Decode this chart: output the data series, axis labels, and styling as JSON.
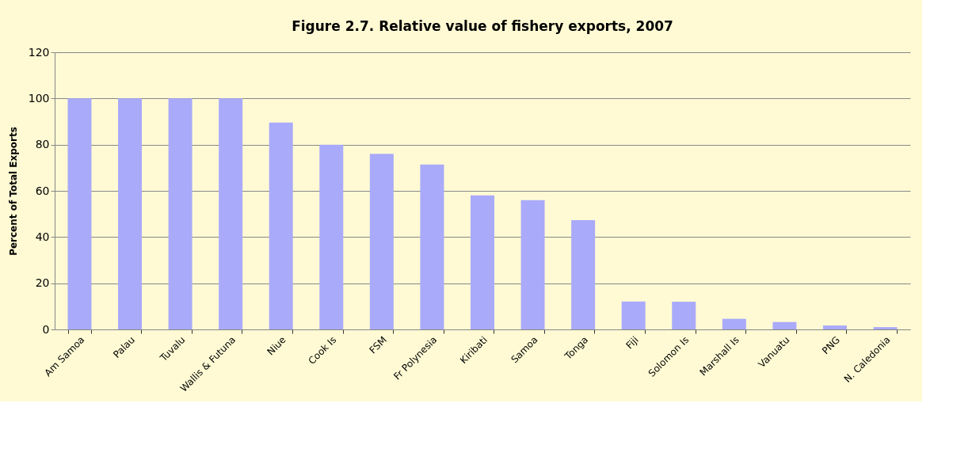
{
  "chart_data": {
    "type": "bar",
    "title": "Figure 2.7. Relative value of fishery exports, 2007",
    "ylabel": "Percent of Total Exports",
    "categories": [
      "Am Samoa",
      "Palau",
      "Tuvalu",
      "Wallis & Futuna",
      "Niue",
      "Cook Is",
      "FSM",
      "Fr Polynesia",
      "Kiribati",
      "Samoa",
      "Tonga",
      "Fiji",
      "Solomon Is",
      "Marshall Is",
      "Vanuatu",
      "PNG",
      "N. Caledonia"
    ],
    "values": [
      100,
      100,
      100,
      100,
      89.6,
      80,
      76,
      71.4,
      58,
      56,
      47.3,
      12.1,
      12,
      4.6,
      3.2,
      1.7,
      1.0
    ],
    "color": "#aaaafa",
    "ylim": [
      0,
      120
    ],
    "yticks": [
      0,
      20,
      40,
      60,
      80,
      100,
      120
    ],
    "grid": "y"
  }
}
